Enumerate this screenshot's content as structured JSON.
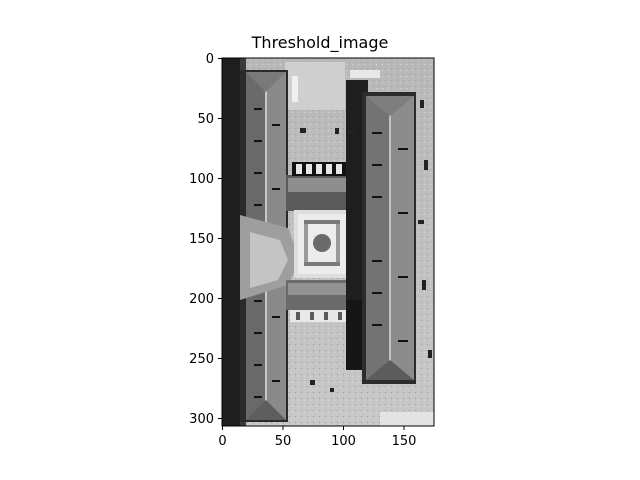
{
  "figure": {
    "title": "Threshold_image",
    "image_subject": "aerial grayscale view of a symmetric building complex with two long wings and a central courtyard",
    "colormap": "gray"
  },
  "axes": {
    "x_ticks": [
      "0",
      "50",
      "100",
      "150"
    ],
    "y_ticks": [
      "0",
      "50",
      "100",
      "150",
      "200",
      "250",
      "300"
    ]
  },
  "chart_data": {
    "type": "heatmap",
    "title": "Threshold_image",
    "xlim": [
      0,
      175
    ],
    "ylim": [
      307,
      0
    ],
    "x_ticks": [
      0,
      50,
      100,
      150
    ],
    "y_ticks": [
      0,
      50,
      100,
      150,
      200,
      250,
      300
    ],
    "grid": false
  }
}
